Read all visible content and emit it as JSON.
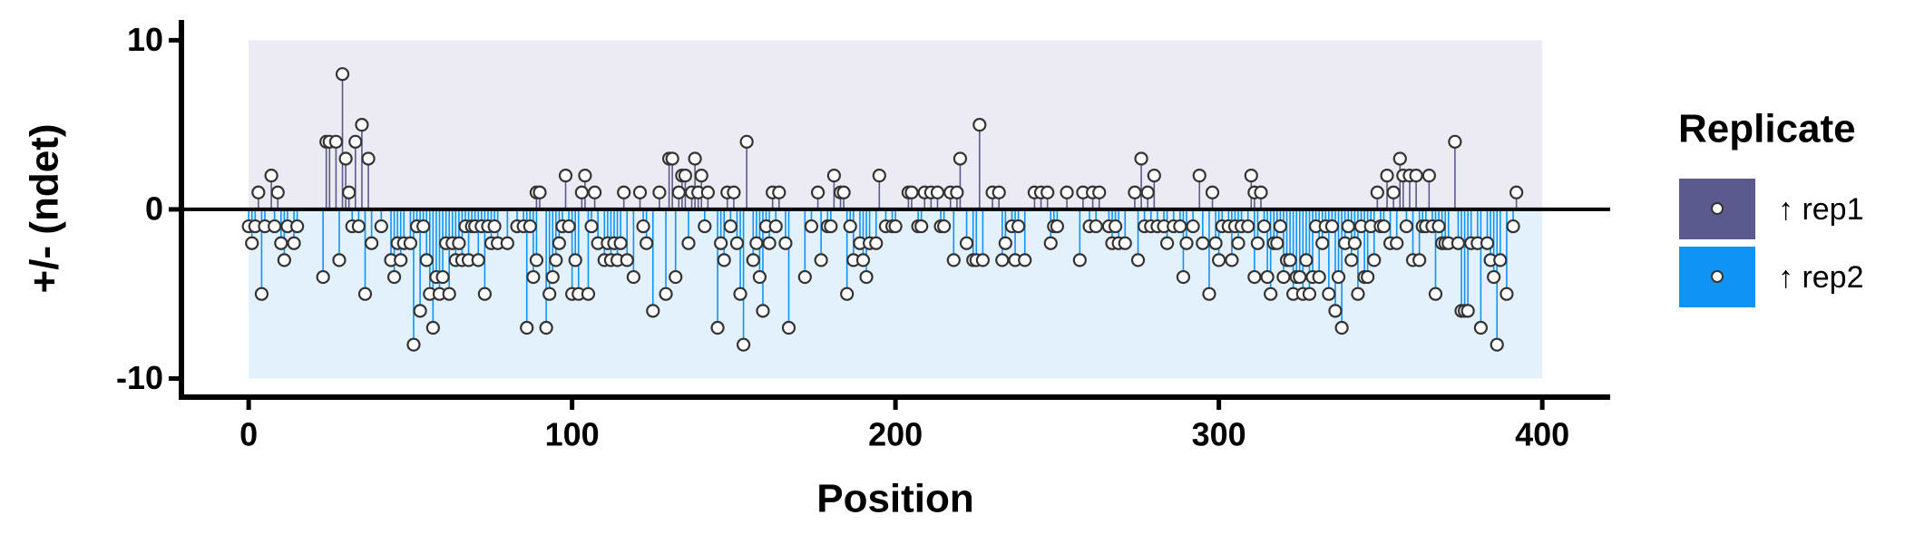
{
  "chart_data": {
    "type": "lollipop",
    "x_label": "Position",
    "y_label": "+/- (ndet)",
    "legend_title": "Replicate",
    "xlim": [
      -20.8,
      421
    ],
    "ylim": [
      -11.1,
      11.2
    ],
    "xticks": [
      0,
      100,
      200,
      300,
      400
    ],
    "yticks": [
      -10,
      0,
      10
    ],
    "series": [
      {
        "name": "↑ rep1",
        "color": "#5b5a8e",
        "band_color": "#eceaf2",
        "x": [
          3,
          7,
          9,
          24,
          25,
          27,
          29,
          30,
          31,
          33,
          35,
          37,
          89,
          90,
          98,
          103,
          104,
          107,
          116,
          121,
          127,
          130,
          131,
          133,
          134,
          135,
          137,
          138,
          139,
          140,
          142,
          148,
          150,
          154,
          162,
          164,
          176,
          181,
          183,
          184,
          195,
          204,
          205,
          209,
          211,
          213,
          217,
          219,
          220,
          226,
          230,
          232,
          243,
          245,
          247,
          253,
          258,
          261,
          263,
          274,
          276,
          278,
          280,
          294,
          298,
          310,
          311,
          313,
          349,
          352,
          354,
          356,
          357,
          359,
          361,
          365,
          373,
          392
        ],
        "values": [
          1,
          2,
          1,
          4,
          4,
          4,
          8,
          3,
          1,
          4,
          5,
          3,
          1,
          1,
          2,
          1,
          2,
          1,
          1,
          1,
          1,
          3,
          3,
          1,
          2,
          2,
          1,
          3,
          1,
          2,
          1,
          1,
          1,
          4,
          1,
          1,
          1,
          2,
          1,
          1,
          2,
          1,
          1,
          1,
          1,
          1,
          1,
          1,
          3,
          5,
          1,
          1,
          1,
          1,
          1,
          1,
          1,
          1,
          1,
          1,
          3,
          1,
          2,
          2,
          1,
          2,
          1,
          1,
          1,
          2,
          1,
          3,
          2,
          2,
          2,
          2,
          4,
          1
        ]
      },
      {
        "name": "↑ rep2",
        "color": "#0f94f5",
        "band_color": "#e2f1fc",
        "x": [
          0,
          1,
          2,
          4,
          5,
          8,
          10,
          11,
          12,
          14,
          15,
          23,
          28,
          32,
          34,
          36,
          38,
          41,
          44,
          45,
          46,
          47,
          48,
          50,
          51,
          52,
          53,
          54,
          55,
          56,
          57,
          58,
          59,
          60,
          61,
          62,
          63,
          64,
          65,
          66,
          67,
          68,
          69,
          70,
          71,
          72,
          73,
          74,
          75,
          76,
          77,
          80,
          83,
          85,
          86,
          87,
          88,
          89,
          92,
          93,
          94,
          95,
          96,
          97,
          99,
          100,
          101,
          102,
          105,
          106,
          108,
          110,
          111,
          112,
          113,
          114,
          115,
          117,
          119,
          122,
          123,
          125,
          129,
          132,
          136,
          141,
          145,
          146,
          147,
          149,
          151,
          152,
          153,
          156,
          157,
          158,
          159,
          160,
          161,
          163,
          166,
          167,
          172,
          174,
          177,
          179,
          180,
          185,
          186,
          187,
          189,
          190,
          191,
          192,
          194,
          197,
          199,
          200,
          207,
          208,
          214,
          215,
          218,
          222,
          224,
          225,
          227,
          233,
          234,
          236,
          237,
          238,
          240,
          248,
          249,
          250,
          257,
          260,
          262,
          266,
          267,
          268,
          269,
          271,
          275,
          277,
          279,
          281,
          283,
          284,
          286,
          288,
          289,
          290,
          292,
          295,
          297,
          299,
          300,
          301,
          303,
          304,
          305,
          306,
          307,
          309,
          311,
          312,
          314,
          315,
          316,
          317,
          318,
          319,
          320,
          321,
          322,
          323,
          324,
          325,
          326,
          327,
          328,
          329,
          330,
          331,
          332,
          333,
          334,
          335,
          336,
          337,
          338,
          339,
          340,
          341,
          342,
          343,
          344,
          345,
          346,
          347,
          348,
          350,
          351,
          353,
          355,
          358,
          360,
          362,
          363,
          364,
          366,
          367,
          368,
          369,
          370,
          371,
          374,
          375,
          376,
          377,
          378,
          380,
          381,
          383,
          384,
          385,
          386,
          387,
          389,
          391
        ],
        "values": [
          -1,
          -2,
          -1,
          -5,
          -1,
          -1,
          -2,
          -3,
          -1,
          -2,
          -1,
          -4,
          -3,
          -1,
          -1,
          -5,
          -2,
          -1,
          -3,
          -4,
          -2,
          -3,
          -2,
          -2,
          -8,
          -1,
          -6,
          -1,
          -3,
          -5,
          -7,
          -4,
          -5,
          -4,
          -2,
          -5,
          -2,
          -3,
          -2,
          -3,
          -1,
          -3,
          -1,
          -1,
          -3,
          -1,
          -5,
          -1,
          -2,
          -1,
          -2,
          -2,
          -1,
          -1,
          -7,
          -1,
          -4,
          -3,
          -7,
          -5,
          -4,
          -3,
          -2,
          -1,
          -1,
          -5,
          -3,
          -5,
          -5,
          -1,
          -2,
          -3,
          -2,
          -3,
          -2,
          -3,
          -2,
          -3,
          -4,
          -1,
          -2,
          -6,
          -5,
          -4,
          -2,
          -1,
          -7,
          -2,
          -3,
          -1,
          -2,
          -5,
          -8,
          -3,
          -2,
          -4,
          -6,
          -1,
          -2,
          -1,
          -2,
          -7,
          -4,
          -1,
          -3,
          -1,
          -1,
          -5,
          -1,
          -3,
          -2,
          -3,
          -4,
          -2,
          -2,
          -1,
          -1,
          -1,
          -1,
          -1,
          -1,
          -1,
          -3,
          -2,
          -3,
          -3,
          -3,
          -3,
          -2,
          -1,
          -3,
          -1,
          -3,
          -2,
          -1,
          -1,
          -3,
          -1,
          -1,
          -1,
          -2,
          -1,
          -2,
          -2,
          -3,
          -1,
          -1,
          -1,
          -1,
          -2,
          -1,
          -1,
          -4,
          -2,
          -1,
          -2,
          -5,
          -2,
          -3,
          -1,
          -1,
          -3,
          -1,
          -2,
          -1,
          -1,
          -4,
          -2,
          -1,
          -4,
          -5,
          -2,
          -2,
          -1,
          -4,
          -3,
          -3,
          -5,
          -4,
          -4,
          -5,
          -3,
          -5,
          -4,
          -1,
          -4,
          -2,
          -1,
          -5,
          -1,
          -6,
          -4,
          -7,
          -2,
          -1,
          -3,
          -2,
          -5,
          -1,
          -4,
          -4,
          -1,
          -3,
          -1,
          -1,
          -2,
          -2,
          -1,
          -3,
          -3,
          -1,
          -1,
          -1,
          -5,
          -1,
          -2,
          -2,
          -2,
          -2,
          -6,
          -6,
          -6,
          -2,
          -2,
          -7,
          -2,
          -3,
          -4,
          -8,
          -3,
          -5,
          -1
        ]
      }
    ]
  }
}
